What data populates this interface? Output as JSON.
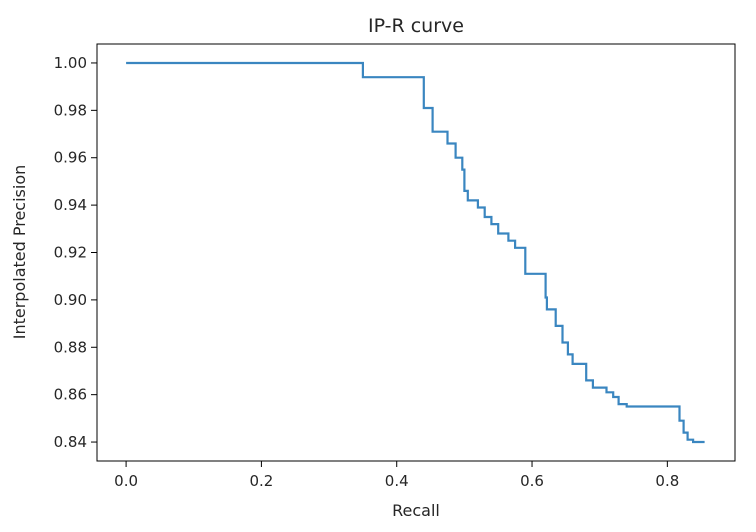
{
  "chart_data": {
    "type": "line",
    "title": "IP-R curve",
    "xlabel": "Recall",
    "ylabel": "Interpolated Precision",
    "xlim": [
      -0.043,
      0.9
    ],
    "ylim": [
      0.832,
      1.008
    ],
    "grid": false,
    "line_color": "#3a86c0",
    "x_ticks": [
      0.0,
      0.2,
      0.4,
      0.6,
      0.8
    ],
    "x_tick_labels": [
      "0.0",
      "0.2",
      "0.4",
      "0.6",
      "0.8"
    ],
    "y_ticks": [
      1.0,
      0.98,
      0.96,
      0.94,
      0.92,
      0.9,
      0.88,
      0.86,
      0.84
    ],
    "y_tick_labels": [
      "1.00",
      "0.98",
      "0.96",
      "0.94",
      "0.92",
      "0.90",
      "0.88",
      "0.86",
      "0.84"
    ],
    "series": [
      {
        "x": [
          0.0,
          0.35,
          0.35,
          0.44,
          0.44,
          0.453,
          0.453,
          0.475,
          0.475,
          0.487,
          0.487,
          0.497,
          0.497,
          0.5,
          0.5,
          0.505,
          0.505,
          0.52,
          0.52,
          0.53,
          0.53,
          0.54,
          0.54,
          0.55,
          0.55,
          0.565,
          0.565,
          0.575,
          0.575,
          0.59,
          0.59,
          0.62,
          0.62,
          0.622,
          0.622,
          0.635,
          0.635,
          0.645,
          0.645,
          0.653,
          0.653,
          0.66,
          0.66,
          0.68,
          0.68,
          0.69,
          0.69,
          0.71,
          0.71,
          0.72,
          0.72,
          0.728,
          0.728,
          0.74,
          0.74,
          0.818,
          0.818,
          0.824,
          0.824,
          0.83,
          0.83,
          0.838,
          0.838,
          0.855
        ],
        "y": [
          1.0,
          1.0,
          0.994,
          0.994,
          0.981,
          0.981,
          0.971,
          0.971,
          0.966,
          0.966,
          0.96,
          0.96,
          0.955,
          0.955,
          0.946,
          0.946,
          0.942,
          0.942,
          0.939,
          0.939,
          0.935,
          0.935,
          0.932,
          0.932,
          0.928,
          0.928,
          0.925,
          0.925,
          0.922,
          0.922,
          0.911,
          0.911,
          0.901,
          0.901,
          0.896,
          0.896,
          0.889,
          0.889,
          0.882,
          0.882,
          0.877,
          0.877,
          0.873,
          0.873,
          0.866,
          0.866,
          0.863,
          0.863,
          0.861,
          0.861,
          0.859,
          0.859,
          0.856,
          0.856,
          0.855,
          0.855,
          0.849,
          0.849,
          0.844,
          0.844,
          0.841,
          0.841,
          0.84,
          0.84
        ]
      }
    ]
  }
}
